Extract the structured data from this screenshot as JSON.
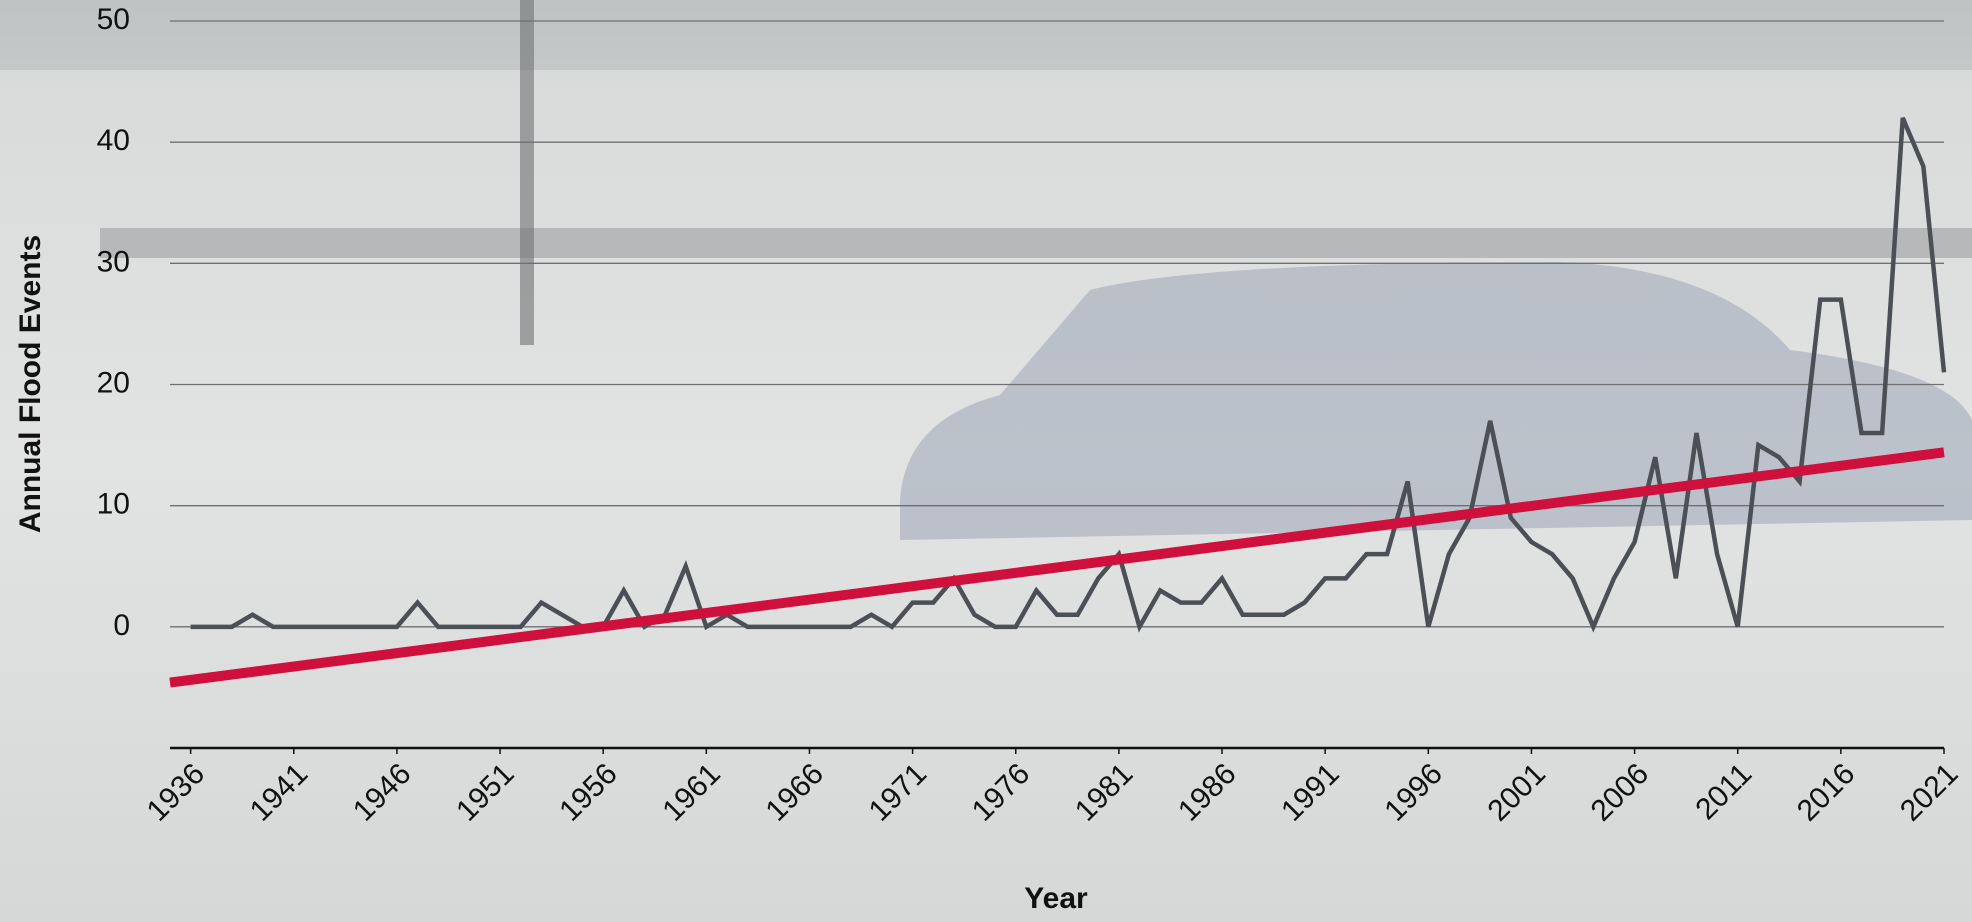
{
  "chart_data": {
    "type": "line",
    "x_label": "Year",
    "y_label": "Annual Flood Events",
    "x": [
      1936,
      1937,
      1938,
      1939,
      1940,
      1941,
      1942,
      1943,
      1944,
      1945,
      1946,
      1947,
      1948,
      1949,
      1950,
      1951,
      1952,
      1953,
      1954,
      1955,
      1956,
      1957,
      1958,
      1959,
      1960,
      1961,
      1962,
      1963,
      1964,
      1965,
      1966,
      1967,
      1968,
      1969,
      1970,
      1971,
      1972,
      1973,
      1974,
      1975,
      1976,
      1977,
      1978,
      1979,
      1980,
      1981,
      1982,
      1983,
      1984,
      1985,
      1986,
      1987,
      1988,
      1989,
      1990,
      1991,
      1992,
      1993,
      1994,
      1995,
      1996,
      1997,
      1998,
      1999,
      2000,
      2001,
      2002,
      2003,
      2004,
      2005,
      2006,
      2007,
      2008,
      2009,
      2010,
      2011,
      2012,
      2013,
      2014,
      2015,
      2016,
      2017,
      2018,
      2019,
      2020,
      2021
    ],
    "values": [
      0,
      0,
      0,
      1,
      0,
      0,
      0,
      0,
      0,
      0,
      0,
      2,
      0,
      0,
      0,
      0,
      0,
      2,
      1,
      0,
      0,
      3,
      0,
      1,
      5,
      0,
      1,
      0,
      0,
      0,
      0,
      0,
      0,
      1,
      0,
      2,
      2,
      4,
      1,
      0,
      0,
      3,
      1,
      1,
      4,
      6,
      0,
      3,
      2,
      2,
      4,
      1,
      1,
      1,
      2,
      4,
      4,
      6,
      6,
      12,
      0,
      6,
      9,
      17,
      9,
      7,
      6,
      4,
      0,
      4,
      7,
      14,
      4,
      16,
      6,
      0,
      15,
      14,
      12,
      27,
      27,
      16,
      16,
      42,
      38,
      21
    ],
    "color": "#4b5056",
    "trendline": {
      "x": [
        1935,
        2021
      ],
      "values": [
        -4.6,
        14.4
      ],
      "color": "#cf0f3c"
    },
    "xlim": [
      1935,
      2021
    ],
    "xticks": [
      1936,
      1941,
      1946,
      1951,
      1956,
      1961,
      1966,
      1971,
      1976,
      1981,
      1986,
      1991,
      1996,
      2001,
      2006,
      2011,
      2016,
      2021
    ],
    "ylim": [
      -10,
      50
    ],
    "yticks": [
      0,
      10,
      20,
      30,
      40,
      50
    ],
    "grid": true
  }
}
